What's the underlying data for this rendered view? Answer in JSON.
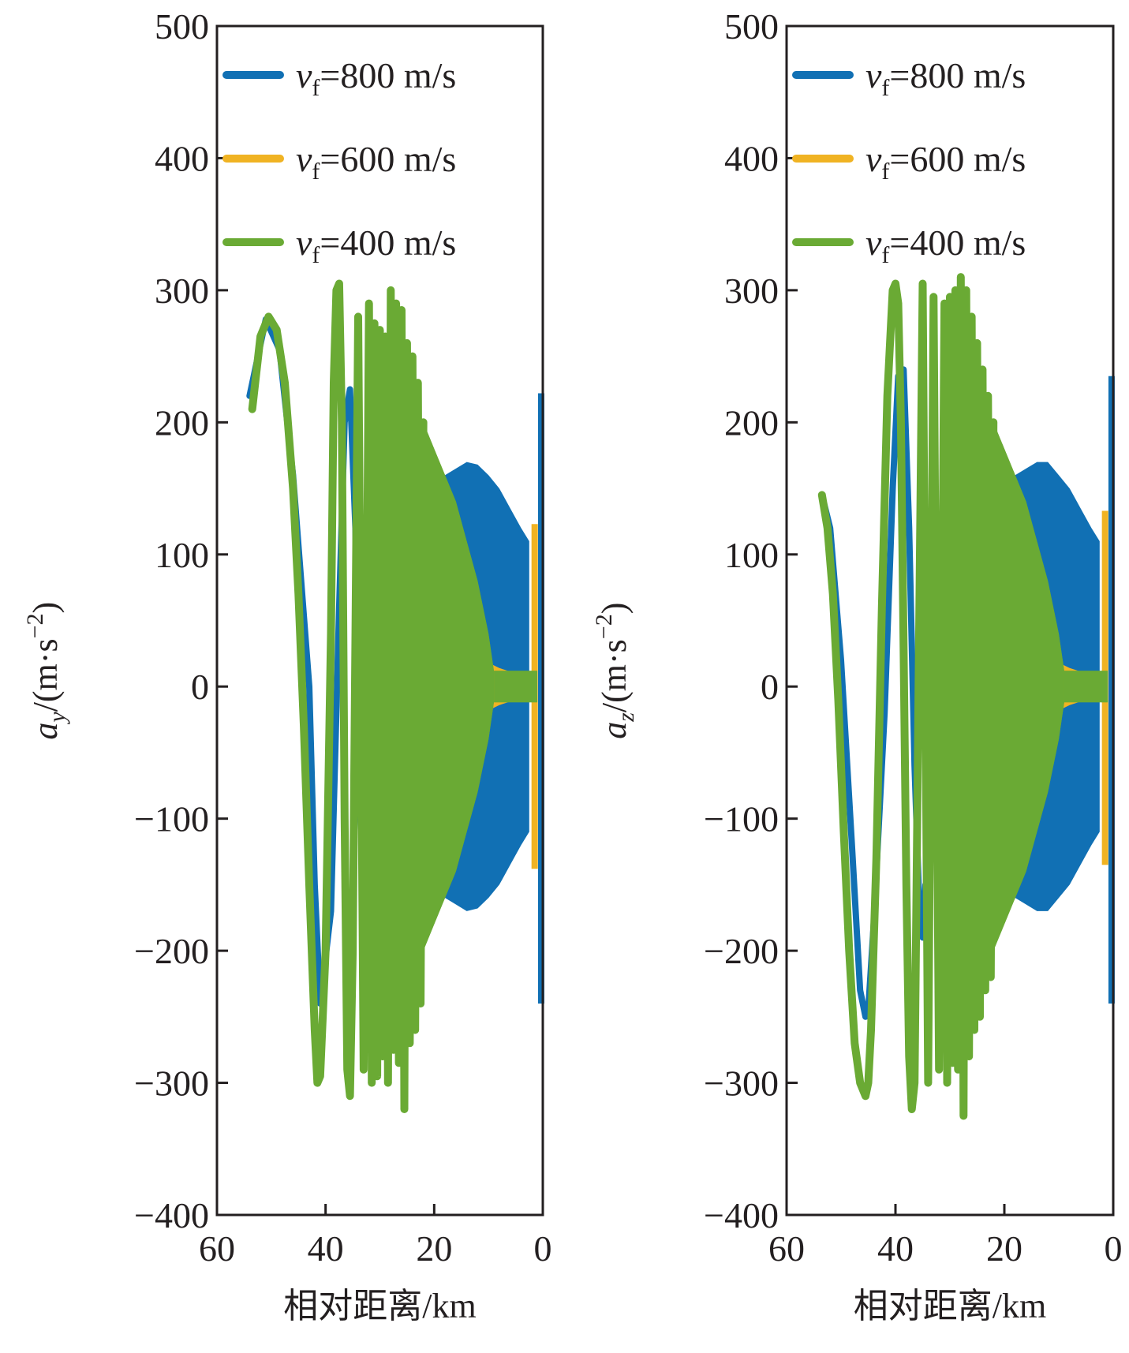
{
  "chart_data": [
    {
      "type": "line",
      "title": "",
      "xlabel": "相对距离/km",
      "ylabel_symbol": "a",
      "ylabel_sub": "y",
      "ylabel_unit": "/(m·s",
      "ylabel_exp": "−2",
      "ylabel_close": ")",
      "xlim": [
        60,
        0
      ],
      "ylim": [
        -400,
        500
      ],
      "xticks": [
        60,
        40,
        20,
        0
      ],
      "xtick_labels": [
        "60",
        "40",
        "20",
        "0"
      ],
      "yticks": [
        500,
        400,
        300,
        200,
        100,
        0,
        -100,
        -200,
        -300,
        -400
      ],
      "ytick_labels": [
        "500",
        "400",
        "300",
        "200",
        "100",
        "0",
        "−100",
        "−200",
        "−300",
        "−400"
      ],
      "legend": {
        "position": "top-right",
        "entries": [
          {
            "symbol": "v",
            "sub": "f",
            "text": "=800 m/s"
          },
          {
            "symbol": "v",
            "sub": "f",
            "text": "=600 m/s"
          },
          {
            "symbol": "v",
            "sub": "f",
            "text": "=400 m/s"
          }
        ]
      },
      "series": [
        {
          "name": "vf=800 m/s",
          "color": "#1170b4",
          "x": [
            54,
            51,
            48.5,
            46,
            43,
            42,
            41,
            39,
            37.5,
            36.5,
            35.5,
            34.5,
            33.5,
            33
          ],
          "y": [
            220,
            278,
            255,
            160,
            0,
            -150,
            -240,
            -170,
            60,
            200,
            225,
            120,
            -100,
            -150
          ],
          "band": {
            "x": [
              20,
              18,
              16,
              14,
              12,
              10,
              8,
              6,
              4,
              2.5
            ],
            "amp": [
              150,
              160,
              165,
              170,
              168,
              160,
              150,
              135,
              120,
              110
            ]
          },
          "spike": {
            "x": 0.3,
            "max": 222,
            "min": -240
          }
        },
        {
          "name": "vf=600 m/s",
          "color": "#f0b323",
          "band": {
            "x": [
              11,
              8,
              5,
              3,
              1.5
            ],
            "amp": [
              20,
              14,
              10,
              8,
              6
            ]
          },
          "spike": {
            "x": 1.5,
            "max": 123,
            "min": -138
          }
        },
        {
          "name": "vf=400 m/s",
          "color": "#6aaa34",
          "x": [
            53.5,
            52,
            50.5,
            49,
            47.5,
            46,
            45,
            44,
            43,
            42,
            41.5,
            41,
            40,
            39,
            38.5,
            38,
            37.5,
            37,
            36.5,
            36,
            35.5,
            35,
            34,
            33,
            32,
            31.5,
            31,
            30.5,
            30,
            29.5,
            29,
            28.5,
            28,
            27.5,
            27,
            26.5,
            26,
            25.5,
            25,
            24.5,
            24,
            23.5,
            23,
            22.5,
            22
          ],
          "y": [
            210,
            265,
            280,
            270,
            230,
            150,
            70,
            -30,
            -150,
            -260,
            -300,
            -295,
            -200,
            40,
            230,
            300,
            305,
            200,
            -100,
            -290,
            -310,
            -200,
            280,
            -290,
            290,
            -300,
            275,
            -295,
            270,
            -280,
            265,
            -300,
            300,
            -275,
            290,
            -285,
            285,
            -320,
            260,
            -270,
            250,
            -260,
            230,
            -240,
            200
          ],
          "band": {
            "x": [
              22,
              20,
              18,
              16,
              14,
              12,
              10,
              9
            ],
            "amp": [
              200,
              180,
              160,
              140,
              110,
              80,
              40,
              12
            ]
          },
          "flat_amp": 12,
          "flat_to": 1
        }
      ]
    },
    {
      "type": "line",
      "title": "",
      "xlabel": "相对距离/km",
      "ylabel_symbol": "a",
      "ylabel_sub": "z",
      "ylabel_unit": "/(m·s",
      "ylabel_exp": "−2",
      "ylabel_close": ")",
      "xlim": [
        60,
        0
      ],
      "ylim": [
        -400,
        500
      ],
      "xticks": [
        60,
        40,
        20,
        0
      ],
      "xtick_labels": [
        "60",
        "40",
        "20",
        "0"
      ],
      "yticks": [
        500,
        400,
        300,
        200,
        100,
        0,
        -100,
        -200,
        -300,
        -400
      ],
      "ytick_labels": [
        "500",
        "400",
        "300",
        "200",
        "100",
        "0",
        "−100",
        "−200",
        "−300",
        "−400"
      ],
      "legend": {
        "position": "top-right",
        "entries": [
          {
            "symbol": "v",
            "sub": "f",
            "text": "=800 m/s"
          },
          {
            "symbol": "v",
            "sub": "f",
            "text": "=600 m/s"
          },
          {
            "symbol": "v",
            "sub": "f",
            "text": "=400 m/s"
          }
        ]
      },
      "series": [
        {
          "name": "vf=800 m/s",
          "color": "#1170b4",
          "x": [
            53.5,
            52,
            50,
            48,
            46.5,
            45.5,
            45,
            44,
            42,
            40.5,
            39.5,
            38.5,
            37.5,
            36.5,
            35.5,
            35,
            34.5
          ],
          "y": [
            145,
            120,
            20,
            -120,
            -230,
            -250,
            -245,
            -180,
            -20,
            150,
            235,
            240,
            120,
            -60,
            -180,
            -190,
            -150
          ],
          "band": {
            "x": [
              20,
              18,
              16,
              14,
              12,
              10,
              8,
              6,
              4,
              2.5
            ],
            "amp": [
              150,
              160,
              165,
              170,
              170,
              160,
              150,
              135,
              120,
              110
            ]
          },
          "spike": {
            "x": 0.3,
            "max": 235,
            "min": -240
          }
        },
        {
          "name": "vf=600 m/s",
          "color": "#f0b323",
          "band": {
            "x": [
              11,
              8,
              5,
              3,
              1.5
            ],
            "amp": [
              20,
              14,
              10,
              8,
              6
            ]
          },
          "spike": {
            "x": 1.5,
            "max": 133,
            "min": -135
          }
        },
        {
          "name": "vf=400 m/s",
          "color": "#6aaa34",
          "x": [
            53.5,
            52.5,
            51.5,
            50.5,
            49.5,
            48.5,
            47.5,
            46.5,
            45.5,
            45,
            44.5,
            43.5,
            42.5,
            41.5,
            40.5,
            40,
            39.5,
            39,
            38.5,
            38,
            37.5,
            37,
            36.5,
            36,
            35,
            34,
            33,
            32,
            31,
            30.5,
            30,
            29.5,
            29,
            28.5,
            28,
            27.5,
            27,
            26.5,
            26,
            25.5,
            25,
            24.5,
            24,
            23.5,
            23,
            22.5,
            22
          ],
          "y": [
            145,
            120,
            70,
            -10,
            -110,
            -200,
            -270,
            -300,
            -310,
            -300,
            -260,
            -130,
            60,
            220,
            300,
            305,
            290,
            200,
            30,
            -150,
            -280,
            -320,
            -300,
            -100,
            305,
            -300,
            295,
            -290,
            290,
            -300,
            295,
            -285,
            300,
            -290,
            310,
            -325,
            300,
            -280,
            280,
            -260,
            260,
            -250,
            240,
            -230,
            220,
            -220,
            200
          ],
          "band": {
            "x": [
              22,
              20,
              18,
              16,
              14,
              12,
              10,
              9
            ],
            "amp": [
              200,
              180,
              160,
              140,
              110,
              80,
              40,
              12
            ]
          },
          "flat_amp": 12,
          "flat_to": 1
        }
      ]
    }
  ]
}
